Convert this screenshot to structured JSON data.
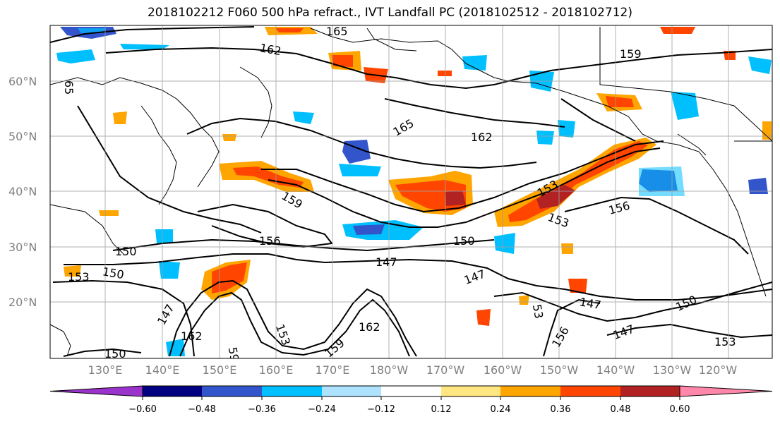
{
  "title": "2018102212 F060 500 hPa refract., IVT Landfall PC (2018102512 - 2018102712)",
  "colors": {
    "contour": "#000000",
    "coast": "#000000",
    "grid": "#a0a0a0",
    "axis_label": "#808080"
  },
  "map": {
    "lat_labels": [
      "20°N",
      "30°N",
      "40°N",
      "50°N",
      "60°N"
    ],
    "lon_labels": [
      "130°E",
      "140°E",
      "150°E",
      "160°E",
      "170°E",
      "180°W",
      "170°W",
      "160°W",
      "150°W",
      "140°W",
      "130°W",
      "120°W"
    ],
    "contour_labels": [
      "165",
      "162",
      "159",
      "65",
      "165",
      "162",
      "159",
      "156",
      "153",
      "150",
      "147",
      "150",
      "153",
      "156",
      "153",
      "153",
      "147",
      "147",
      "150",
      "153",
      "162",
      "159",
      "147",
      "156",
      "162",
      "150",
      "53",
      "147",
      "150",
      "59"
    ]
  },
  "colorbar": {
    "tick_labels": [
      "−0.60",
      "−0.48",
      "−0.36",
      "−0.24",
      "−0.12",
      "0.12",
      "0.24",
      "0.36",
      "0.48",
      "0.60"
    ],
    "colors": [
      "#9933cc",
      "#000080",
      "#3355cc",
      "#00bfff",
      "#aee3ff",
      "#ffffff",
      "#ffe680",
      "#ffa500",
      "#ff4500",
      "#b22222",
      "#ff88aa"
    ]
  }
}
